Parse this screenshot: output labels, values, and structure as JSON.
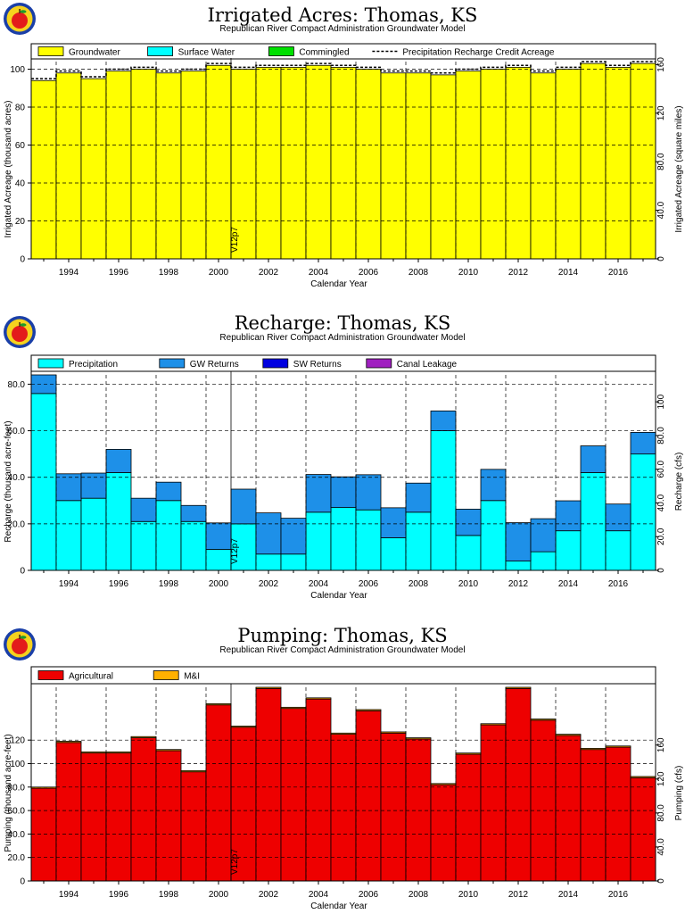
{
  "colors": {
    "groundwater": "#ffff00",
    "surface_water": "#00ffff",
    "commingled": "#00e000",
    "precipitation": "#00ffff",
    "gw_returns": "#1e90e8",
    "sw_returns": "#0000e0",
    "canal_leakage": "#a020c0",
    "agricultural": "#ee0000",
    "mi": "#ffb000"
  },
  "icons": {
    "logo": "apple-seal-icon"
  },
  "chart_data": [
    {
      "type": "bar",
      "title": "Irrigated Acres: Thomas, KS",
      "subtitle": "Republican River Compact Administration Groundwater Model",
      "xlabel": "Calendar Year",
      "ylabel": "Irrigated Acreage (thousand acres)",
      "ylabel_right": "Irrigated Acreage (square miles)",
      "ylim": [
        0,
        104
      ],
      "yticks": [
        "0",
        "20",
        "40",
        "60",
        "80",
        "100"
      ],
      "ylim_right": [
        0,
        162.5
      ],
      "yticks_right": [
        "0",
        "40.0",
        "80.0",
        "120",
        "160"
      ],
      "xlim": [
        1992.5,
        2017.5
      ],
      "xticks": [
        "1994",
        "1996",
        "1998",
        "2000",
        "2002",
        "2004",
        "2006",
        "2008",
        "2010",
        "2012",
        "2014",
        "2016"
      ],
      "grid": true,
      "legend_position": "top",
      "annotation": {
        "text": "V12p7",
        "year": 2000.5
      },
      "categories": [
        1993,
        1994,
        1995,
        1996,
        1997,
        1998,
        1999,
        2000,
        2001,
        2002,
        2003,
        2004,
        2005,
        2006,
        2007,
        2008,
        2009,
        2010,
        2011,
        2012,
        2013,
        2014,
        2015,
        2016,
        2017
      ],
      "series": [
        {
          "name": "Groundwater",
          "color_key": "groundwater",
          "style": "area",
          "values": [
            94,
            98,
            95,
            99,
            100,
            98,
            99,
            102,
            100,
            101,
            101,
            102,
            101,
            100,
            98,
            98,
            97,
            99,
            100,
            101,
            98,
            100,
            103,
            101,
            103
          ]
        },
        {
          "name": "Surface Water",
          "color_key": "surface_water",
          "style": "area",
          "values": [
            0,
            0,
            0,
            0,
            0,
            0,
            0,
            0,
            0,
            0,
            0,
            0,
            0,
            0,
            0,
            0,
            0,
            0,
            0,
            0,
            0,
            0,
            0,
            0,
            0
          ]
        },
        {
          "name": "Commingled",
          "color_key": "commingled",
          "style": "area",
          "values": [
            0,
            0,
            0,
            0,
            0,
            0,
            0,
            0,
            0,
            0,
            0,
            0,
            0,
            0,
            0,
            0,
            0,
            0,
            0,
            0,
            0,
            0,
            0,
            0,
            0
          ]
        },
        {
          "name": "Precipitation Recharge Credit Acreage",
          "style": "dashed-line",
          "values": [
            95,
            99,
            96,
            100,
            101,
            99,
            100,
            103,
            101,
            102,
            102,
            103,
            102,
            101,
            99,
            99,
            98,
            100,
            101,
            102,
            99,
            101,
            104,
            102,
            104
          ]
        }
      ]
    },
    {
      "type": "bar",
      "title": "Recharge: Thomas, KS",
      "subtitle": "Republican River Compact Administration Groundwater Model",
      "xlabel": "Calendar Year",
      "ylabel": "Recharge (thousand acre-feet)",
      "ylabel_right": "Recharge (cfs)",
      "ylim": [
        0,
        84
      ],
      "yticks": [
        "0",
        "20.0",
        "40.0",
        "60.0",
        "80.0"
      ],
      "ylim_right": [
        0,
        116
      ],
      "yticks_right": [
        "0",
        "20.0",
        "40.0",
        "60.0",
        "80.0",
        "100"
      ],
      "xlim": [
        1992.5,
        2017.5
      ],
      "xticks": [
        "1994",
        "1996",
        "1998",
        "2000",
        "2002",
        "2004",
        "2006",
        "2008",
        "2010",
        "2012",
        "2014",
        "2016"
      ],
      "grid": true,
      "legend_position": "top",
      "annotation": {
        "text": "V12p7",
        "year": 2000.5
      },
      "categories": [
        1993,
        1994,
        1995,
        1996,
        1997,
        1998,
        1999,
        2000,
        2001,
        2002,
        2003,
        2004,
        2005,
        2006,
        2007,
        2008,
        2009,
        2010,
        2011,
        2012,
        2013,
        2014,
        2015,
        2016,
        2017
      ],
      "series": [
        {
          "name": "Precipitation",
          "color_key": "precipitation",
          "style": "stack",
          "values": [
            76,
            30,
            31,
            42,
            21,
            30,
            21,
            9,
            20,
            7,
            7,
            25,
            27,
            26,
            14,
            25,
            60,
            15,
            30,
            4,
            8,
            17,
            42,
            17,
            50
          ]
        },
        {
          "name": "GW Returns",
          "color_key": "gw_returns",
          "style": "stack",
          "values": [
            8,
            11.5,
            10.8,
            10,
            10,
            7.9,
            6.9,
            11.4,
            14.9,
            17.7,
            15.4,
            16.2,
            13.2,
            15.1,
            12.9,
            12.5,
            8.5,
            11.3,
            13.4,
            16.5,
            14.2,
            12.9,
            11.5,
            11.5,
            9.3
          ]
        },
        {
          "name": "SW Returns",
          "color_key": "sw_returns",
          "style": "stack",
          "values": [
            0,
            0,
            0,
            0,
            0,
            0,
            0,
            0,
            0,
            0,
            0,
            0,
            0,
            0,
            0,
            0,
            0,
            0,
            0,
            0,
            0,
            0,
            0,
            0,
            0
          ]
        },
        {
          "name": "Canal Leakage",
          "color_key": "canal_leakage",
          "style": "stack",
          "values": [
            0,
            0,
            0,
            0,
            0,
            0,
            0,
            0,
            0,
            0,
            0,
            0,
            0,
            0,
            0,
            0,
            0,
            0,
            0,
            0,
            0,
            0,
            0,
            0,
            0
          ]
        }
      ]
    },
    {
      "type": "bar",
      "title": "Pumping: Thomas, KS",
      "subtitle": "Republican River Compact Administration Groundwater Model",
      "xlabel": "Calendar Year",
      "ylabel": "Pumping (thousand acre-feet)",
      "ylabel_right": "Pumping (cfs)",
      "ylim": [
        0,
        165
      ],
      "yticks": [
        "0",
        "20.0",
        "40.0",
        "60.0",
        "80.0",
        "100",
        "120"
      ],
      "ylim_right": [
        0,
        228
      ],
      "yticks_right": [
        "0",
        "40.0",
        "80.0",
        "120",
        "160"
      ],
      "xlim": [
        1992.5,
        2017.5
      ],
      "xticks": [
        "1994",
        "1996",
        "1998",
        "2000",
        "2002",
        "2004",
        "2006",
        "2008",
        "2010",
        "2012",
        "2014",
        "2016"
      ],
      "grid": true,
      "legend_position": "top",
      "annotation": {
        "text": "V12p7",
        "year": 2000.5
      },
      "categories": [
        1993,
        1994,
        1995,
        1996,
        1997,
        1998,
        1999,
        2000,
        2001,
        2002,
        2003,
        2004,
        2005,
        2006,
        2007,
        2008,
        2009,
        2010,
        2011,
        2012,
        2013,
        2014,
        2015,
        2016,
        2017
      ],
      "series": [
        {
          "name": "Agricultural",
          "color_key": "agricultural",
          "style": "stack",
          "values": [
            79,
            118,
            109,
            109,
            122,
            111,
            93,
            150,
            131,
            164,
            147,
            155,
            125,
            145,
            126,
            121,
            82,
            108,
            133,
            164,
            137,
            124,
            112,
            114,
            88
          ]
        },
        {
          "name": "M&I",
          "color_key": "mi",
          "style": "stack",
          "values": [
            1,
            1,
            1,
            1,
            1,
            1,
            1,
            1,
            1,
            1,
            1,
            1,
            1,
            1,
            1,
            1,
            1,
            1,
            1,
            1,
            1,
            1,
            1,
            1,
            1
          ]
        }
      ]
    }
  ]
}
